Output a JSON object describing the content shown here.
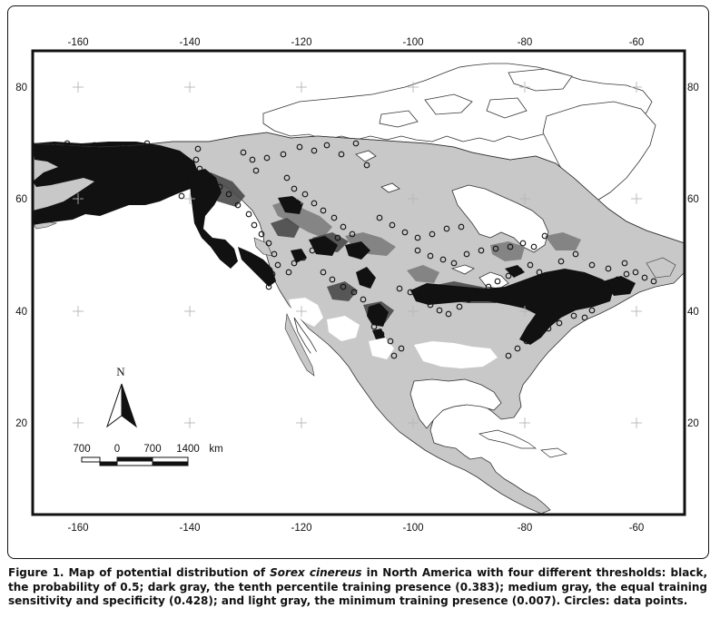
{
  "map": {
    "top_lon_ticks": [
      "-160",
      "-140",
      "-120",
      "-100",
      "-80",
      "-60"
    ],
    "bottom_lon_ticks": [
      "-160",
      "-140",
      "-120",
      "-100",
      "-80",
      "-60"
    ],
    "left_lat_ticks": [
      "80",
      "60",
      "40",
      "20"
    ],
    "right_lat_ticks": [
      "80",
      "60",
      "40",
      "20"
    ],
    "north_arrow_label": "N",
    "scale_bar": {
      "labels": [
        "700",
        "0",
        "700",
        "1400",
        "km"
      ]
    },
    "colors": {
      "black_threshold": "#111111",
      "dark_gray_threshold": "#4a4a4a",
      "medium_gray_threshold": "#7d7d7d",
      "light_gray_threshold": "#c8c8c8",
      "land_outline": "#333333",
      "background": "#ffffff"
    }
  },
  "caption": {
    "prefix": "Figure 1. Map of potential distribution of ",
    "species": "Sorex cinereus",
    "suffix": " in North America with four different thresholds: black, the probability of 0.5; dark gray, the tenth percentile training presence (0.383); medium gray, the equal training sensitivity and specificity (0.428); and light gray, the minimum training presence (0.007). Circles: data points."
  }
}
